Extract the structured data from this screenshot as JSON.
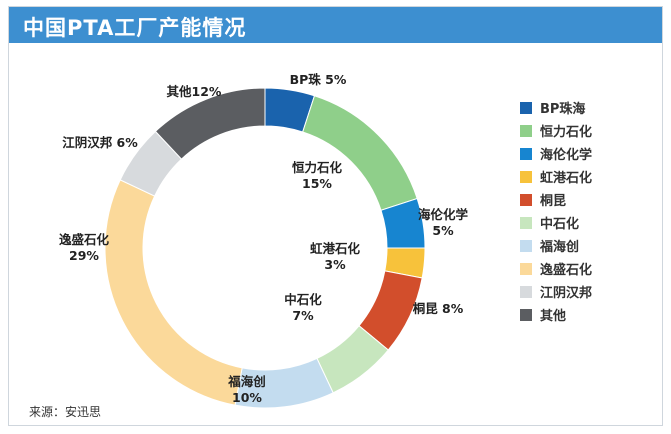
{
  "title": "中国PTA工厂产能情况",
  "source": "来源：安迅思",
  "chart_data": {
    "type": "pie",
    "title": "中国PTA工厂产能情况",
    "donut": true,
    "start_angle_deg": 0,
    "direction": "clockwise",
    "legend_position": "right",
    "slices": [
      {
        "name": "BP珠海",
        "value": 5,
        "label_line1": "BP珠 5%",
        "label_line2": "",
        "color": "#1a63ad"
      },
      {
        "name": "恒力石化",
        "value": 15,
        "label_line1": "恒力石化",
        "label_line2": "15%",
        "color": "#8fcf8a"
      },
      {
        "name": "海伦化学",
        "value": 5,
        "label_line1": "海伦化学",
        "label_line2": "5%",
        "color": "#1785d0"
      },
      {
        "name": "虹港石化",
        "value": 3,
        "label_line1": "虹港石化",
        "label_line2": "3%",
        "color": "#f7c23b"
      },
      {
        "name": "桐昆",
        "value": 8,
        "label_line1": "桐昆 8%",
        "label_line2": "",
        "color": "#d24e2c"
      },
      {
        "name": "中石化",
        "value": 7,
        "label_line1": "中石化",
        "label_line2": "7%",
        "color": "#c7e6be"
      },
      {
        "name": "福海创",
        "value": 10,
        "label_line1": "福海创",
        "label_line2": "10%",
        "color": "#c3dcef"
      },
      {
        "name": "逸盛石化",
        "value": 29,
        "label_line1": "逸盛石化",
        "label_line2": "29%",
        "color": "#fbd99a"
      },
      {
        "name": "江阴汉邦",
        "value": 6,
        "label_line1": "江阴汉邦 6%",
        "label_line2": "",
        "color": "#d7dadd"
      },
      {
        "name": "其他",
        "value": 12,
        "label_line1": "其他12%",
        "label_line2": "",
        "color": "#5b5d61"
      }
    ]
  }
}
